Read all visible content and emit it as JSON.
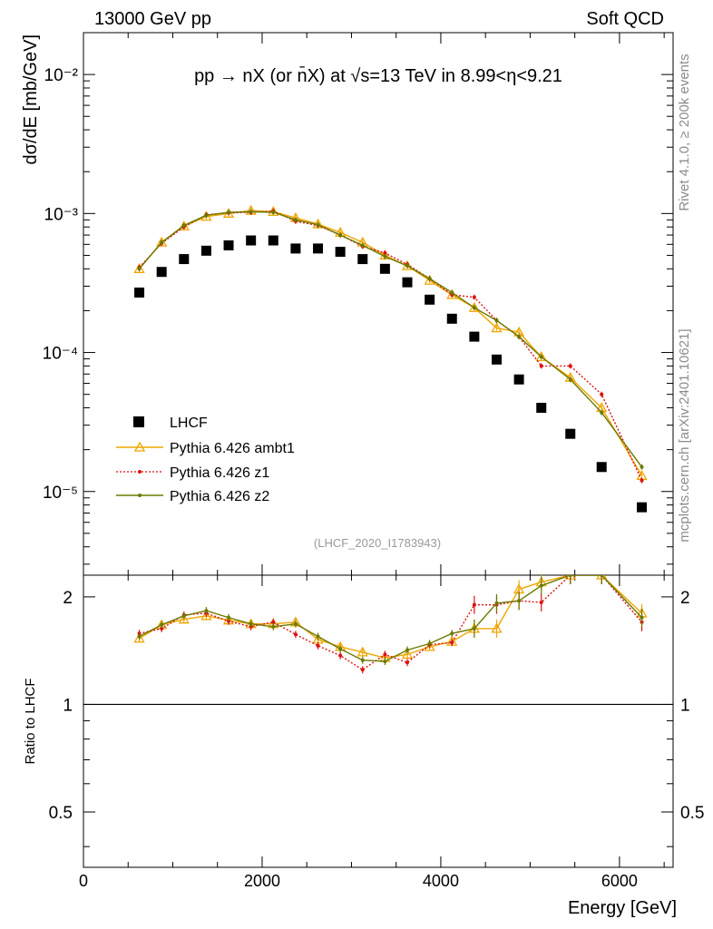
{
  "header": {
    "left": "13000 GeV pp",
    "right": "Soft QCD",
    "side_top": "Rivet 4.1.0, ≥ 200k events",
    "side_bottom": "mcplots.cern.ch [arXiv:2401.10621]"
  },
  "chart_data": {
    "type": "scatter",
    "title": "pp → nX (or n̄X) at √s=13 TeV in 8.99<η<9.21",
    "analysis_label": "(LHCF_2020_I1783943)",
    "xlabel": "Energy [GeV]",
    "ylabel": "dσ/dE [mb/GeV]",
    "ratio_ylabel": "Ratio to LHCF",
    "xlim": [
      0,
      6600
    ],
    "ylim": [
      2.5e-06,
      0.02
    ],
    "yscale": "log",
    "ratio_ylim": [
      0.35,
      2.3
    ],
    "x_ticks": [
      0,
      2000,
      4000,
      6000
    ],
    "x_tick_labels": [
      "0",
      "2000",
      "4000",
      "6000"
    ],
    "y_ticks": [
      1e-05,
      0.0001,
      0.001,
      0.01
    ],
    "y_tick_labels": [
      "10⁻⁵",
      "10⁻⁴",
      "10⁻³",
      "10⁻²"
    ],
    "ratio_ticks": [
      0.5,
      1,
      2
    ],
    "ratio_tick_labels": [
      "0.5",
      "1",
      "2"
    ],
    "x": [
      625,
      875,
      1125,
      1375,
      1625,
      1875,
      2125,
      2375,
      2625,
      2875,
      3125,
      3375,
      3625,
      3875,
      4125,
      4375,
      4625,
      4875,
      5125,
      5450,
      5800,
      6250
    ],
    "reference": {
      "name": "LHCF",
      "color": "#000000",
      "values": [
        0.00027,
        0.00038,
        0.00047,
        0.00054,
        0.00059,
        0.00064,
        0.00064,
        0.00056,
        0.00056,
        0.00053,
        0.00047,
        0.0004,
        0.00032,
        0.00024,
        0.000175,
        0.00013,
        8.9e-05,
        6.4e-05,
        4e-05,
        2.6e-05,
        1.5e-05,
        7.7e-06
      ]
    },
    "series": [
      {
        "name": "Pythia 6.426 ambt1",
        "color": "#f0a500",
        "style": "solid",
        "marker": "triangle",
        "values": [
          0.0004,
          0.00062,
          0.00081,
          0.00095,
          0.001,
          0.00105,
          0.00103,
          0.00093,
          0.00084,
          0.00073,
          0.00062,
          0.0005,
          0.00042,
          0.00033,
          0.00026,
          0.00021,
          0.00015,
          0.00014,
          9.3e-05,
          6.6e-05,
          4e-05,
          1.3e-05
        ],
        "ratio": [
          1.53,
          1.67,
          1.73,
          1.77,
          1.72,
          1.68,
          1.68,
          1.7,
          1.52,
          1.45,
          1.4,
          1.35,
          1.38,
          1.45,
          1.5,
          1.63,
          1.63,
          2.1,
          2.2,
          2.3,
          2.3,
          1.8
        ]
      },
      {
        "name": "Pythia 6.426 z1",
        "color": "#dd1111",
        "style": "dotted",
        "marker": "dot",
        "values": [
          0.00041,
          0.00061,
          0.0008,
          0.00098,
          0.00101,
          0.00102,
          0.00104,
          0.00088,
          0.00082,
          0.0007,
          0.00058,
          0.00052,
          0.00043,
          0.00034,
          0.00026,
          0.00025,
          0.00017,
          0.00013,
          8e-05,
          8e-05,
          5e-05,
          1.2e-05
        ],
        "ratio": [
          1.58,
          1.63,
          1.78,
          1.8,
          1.71,
          1.65,
          1.7,
          1.57,
          1.46,
          1.37,
          1.25,
          1.38,
          1.31,
          1.47,
          1.49,
          1.9,
          1.9,
          1.95,
          1.93,
          2.3,
          2.3,
          1.7
        ]
      },
      {
        "name": "Pythia 6.426 z2",
        "color": "#6b7a00",
        "style": "solid",
        "marker": "dot",
        "values": [
          0.0004,
          0.00062,
          0.00082,
          0.00097,
          0.00102,
          0.00103,
          0.00102,
          0.0009,
          0.00083,
          0.0007,
          0.00059,
          0.00049,
          0.00042,
          0.00034,
          0.00027,
          0.00021,
          0.00017,
          0.00013,
          9.3e-05,
          6.4e-05,
          3.7e-05,
          1.5e-05
        ],
        "ratio": [
          1.55,
          1.67,
          1.77,
          1.83,
          1.75,
          1.68,
          1.65,
          1.68,
          1.55,
          1.43,
          1.33,
          1.32,
          1.42,
          1.48,
          1.58,
          1.63,
          1.92,
          1.95,
          2.15,
          2.3,
          2.3,
          1.75
        ]
      }
    ]
  }
}
